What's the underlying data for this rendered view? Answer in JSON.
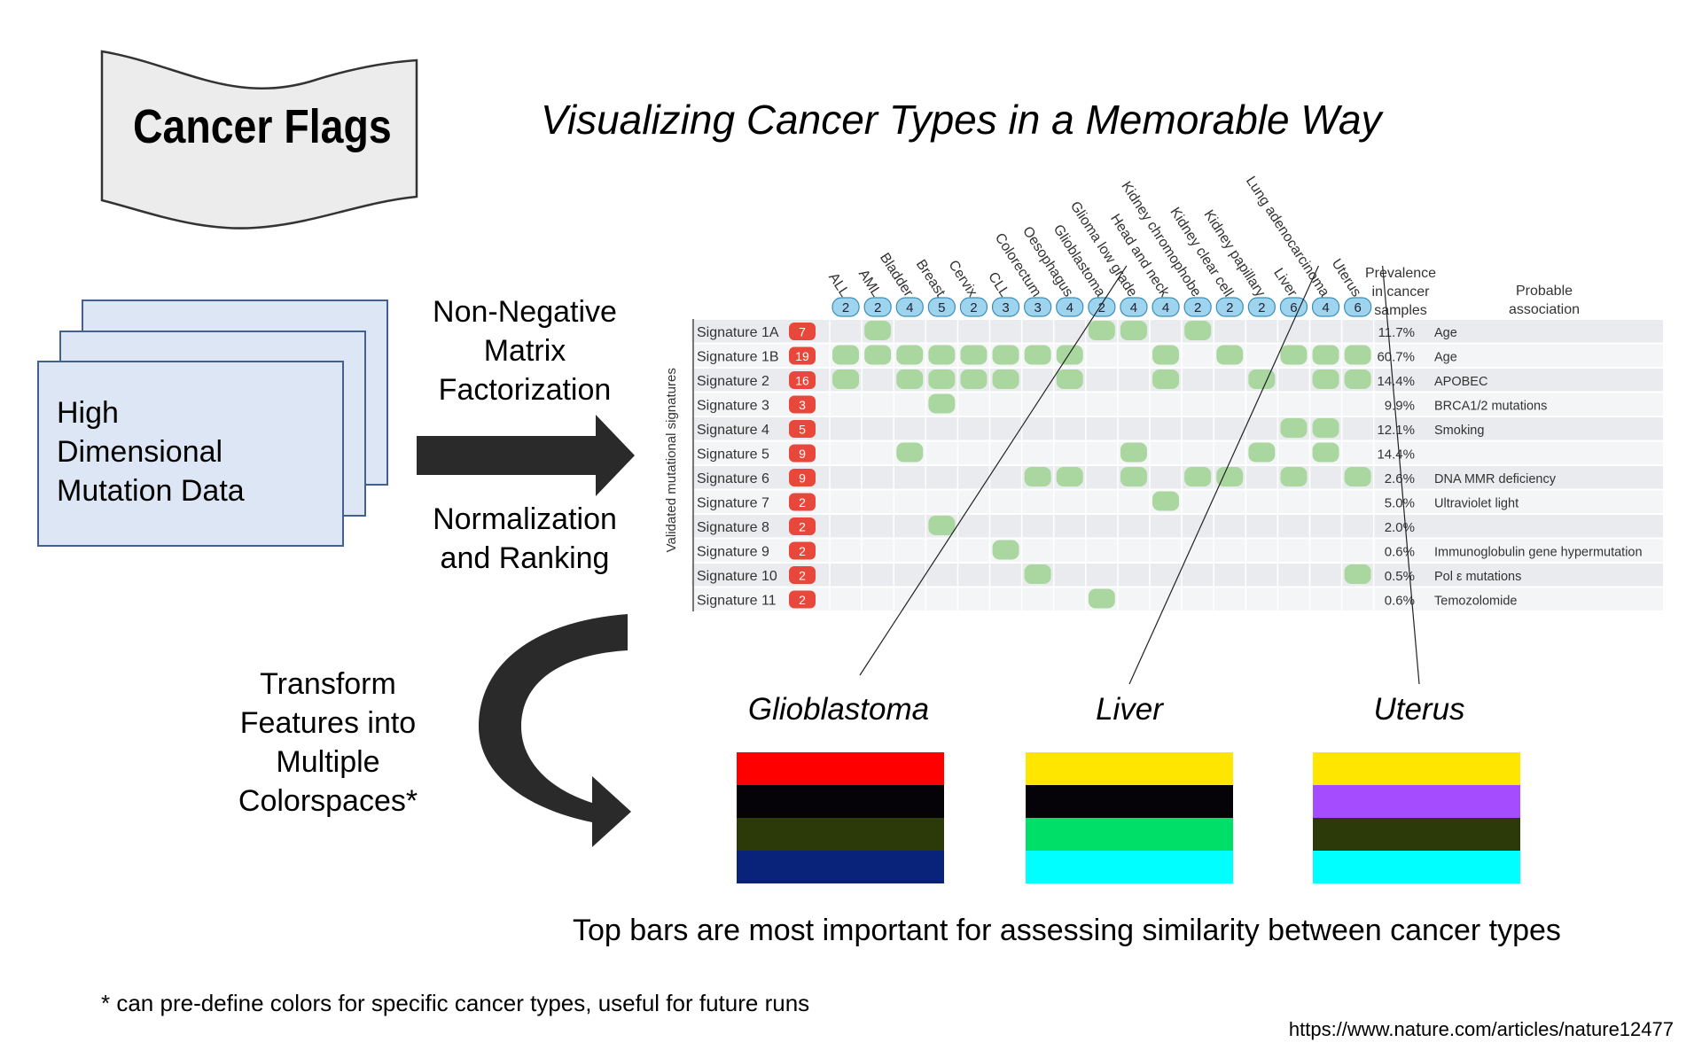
{
  "flag": {
    "title": "Cancer Flags"
  },
  "subtitle": "Visualizing Cancer Types in a Memorable Way",
  "input_card": {
    "text": "High\nDimensional\nMutation Data"
  },
  "step1": {
    "text": "Non-Negative\nMatrix\nFactorization"
  },
  "step2": {
    "text": "Normalization\nand Ranking"
  },
  "step3": {
    "text": "Transform\nFeatures into\nMultiple\nColorspaces*"
  },
  "matrix": {
    "ylabel": "Validated mutational signatures",
    "prevalence_header": [
      "Prevalence",
      "in cancer",
      "samples"
    ],
    "association_header": [
      "Probable",
      "association"
    ],
    "columns": [
      "ALL",
      "AML",
      "Bladder",
      "Breast",
      "Cervix",
      "CLL",
      "Colorectum",
      "Oesophagus",
      "Glioblastoma",
      "Glioma low grade",
      "Head and neck",
      "Kidney chromophobe",
      "Kidney clear cell",
      "Kidney papillary",
      "Liver",
      "Lung adenocarcinoma",
      "Uterus"
    ],
    "column_counts": [
      2,
      2,
      4,
      5,
      2,
      3,
      3,
      4,
      2,
      4,
      4,
      2,
      2,
      2,
      6,
      4,
      6
    ],
    "rows": [
      {
        "name": "Signature 1A",
        "count": 7,
        "prevalence": "11.7%",
        "association": "Age",
        "cells": [
          1,
          8,
          9,
          11
        ]
      },
      {
        "name": "Signature 1B",
        "count": 19,
        "prevalence": "60.7%",
        "association": "Age",
        "cells": [
          0,
          1,
          2,
          3,
          4,
          5,
          6,
          7,
          10,
          12,
          14,
          15,
          16
        ]
      },
      {
        "name": "Signature 2",
        "count": 16,
        "prevalence": "14.4%",
        "association": "APOBEC",
        "cells": [
          0,
          2,
          3,
          4,
          5,
          7,
          10,
          13,
          15,
          16
        ]
      },
      {
        "name": "Signature 3",
        "count": 3,
        "prevalence": "9.9%",
        "association": "BRCA1/2 mutations",
        "cells": [
          3
        ]
      },
      {
        "name": "Signature 4",
        "count": 5,
        "prevalence": "12.1%",
        "association": "Smoking",
        "cells": [
          14,
          15
        ]
      },
      {
        "name": "Signature 5",
        "count": 9,
        "prevalence": "14.4%",
        "association": "",
        "cells": [
          2,
          9,
          13,
          15
        ]
      },
      {
        "name": "Signature 6",
        "count": 9,
        "prevalence": "2.6%",
        "association": "DNA MMR deficiency",
        "cells": [
          6,
          7,
          9,
          11,
          12,
          14,
          16
        ]
      },
      {
        "name": "Signature 7",
        "count": 2,
        "prevalence": "5.0%",
        "association": "Ultraviolet light",
        "cells": [
          10
        ]
      },
      {
        "name": "Signature 8",
        "count": 2,
        "prevalence": "2.0%",
        "association": "",
        "cells": [
          3
        ]
      },
      {
        "name": "Signature 9",
        "count": 2,
        "prevalence": "0.6%",
        "association": "Immunoglobulin gene hypermutation",
        "cells": [
          5
        ]
      },
      {
        "name": "Signature 10",
        "count": 2,
        "prevalence": "0.5%",
        "association": "Pol ε mutations",
        "cells": [
          6,
          16
        ]
      },
      {
        "name": "Signature 11",
        "count": 2,
        "prevalence": "0.6%",
        "association": "Temozolomide",
        "cells": [
          8
        ]
      }
    ]
  },
  "flags": [
    {
      "name": "Glioblastoma",
      "colors": [
        "#ff0000",
        "#050208",
        "#2b3a08",
        "#0a237a"
      ]
    },
    {
      "name": "Liver",
      "colors": [
        "#ffe600",
        "#050208",
        "#00e068",
        "#00ffff"
      ]
    },
    {
      "name": "Uterus",
      "colors": [
        "#ffe600",
        "#a64cff",
        "#2b3a08",
        "#00ffff"
      ]
    }
  ],
  "bottom_note": "Top bars are most important for assessing similarity between cancer types",
  "footnote": "* can pre-define colors for specific cancer types, useful for future runs",
  "source_url": "https://www.nature.com/articles/nature12477",
  "colors": {
    "card_fill": "#dce6f5",
    "card_border": "#44608e",
    "cell_green": "#a9d79f",
    "count_red": "#e8473b",
    "count_blue": "#9fd4ee"
  }
}
